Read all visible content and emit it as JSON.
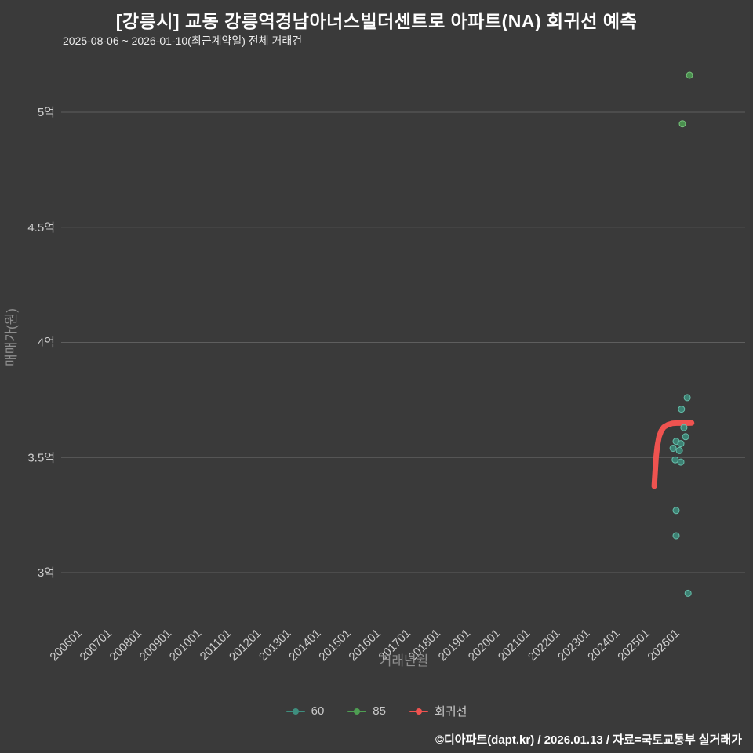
{
  "header": {
    "title": "[강릉시] 교동 강릉역경남아너스빌더센트로 아파트(NA) 회귀선 예측",
    "subtitle": "2025-08-06 ~ 2026-01-10(최근계약일) 전체 거래건"
  },
  "chart_data": {
    "type": "scatter",
    "title": "[강릉시] 교동 강릉역경남아너스빌더센트로 아파트(NA) 회귀선 예측",
    "subtitle": "2025-08-06 ~ 2026-01-10(최근계약일) 전체 거래건",
    "xlabel": "거래년월",
    "ylabel": "매매가(원)",
    "x_unit": "decimal year (2006.0 = 200601)",
    "y_unit": "억원",
    "ylim": [
      2.8,
      5.3
    ],
    "grid": true,
    "legend_position": "bottom-center",
    "x_ticks": [
      "200601",
      "200701",
      "200801",
      "200901",
      "201001",
      "201101",
      "201201",
      "201301",
      "201401",
      "201501",
      "201601",
      "201701",
      "201801",
      "201901",
      "202001",
      "202101",
      "202201",
      "202301",
      "202401",
      "202501",
      "202601"
    ],
    "y_ticks": [
      {
        "label": "5억",
        "value": 5.0
      },
      {
        "label": "4.5억",
        "value": 4.5
      },
      {
        "label": "4억",
        "value": 4.0
      },
      {
        "label": "3.5억",
        "value": 3.5
      },
      {
        "label": "3억",
        "value": 3.0
      }
    ],
    "series": [
      {
        "name": "60",
        "type": "scatter",
        "color": "#3e8e7e",
        "stroke": "#66bfab",
        "points": [
          {
            "x": 2026.5,
            "y": 3.76
          },
          {
            "x": 2026.31,
            "y": 3.71
          },
          {
            "x": 2026.39,
            "y": 3.63
          },
          {
            "x": 2026.45,
            "y": 3.59
          },
          {
            "x": 2026.13,
            "y": 3.57
          },
          {
            "x": 2026.29,
            "y": 3.56
          },
          {
            "x": 2026.03,
            "y": 3.54
          },
          {
            "x": 2026.24,
            "y": 3.53
          },
          {
            "x": 2026.1,
            "y": 3.49
          },
          {
            "x": 2026.29,
            "y": 3.48
          },
          {
            "x": 2026.13,
            "y": 3.27
          },
          {
            "x": 2026.13,
            "y": 3.16
          },
          {
            "x": 2026.53,
            "y": 2.91
          }
        ]
      },
      {
        "name": "85",
        "type": "scatter",
        "color": "#4e9e52",
        "stroke": "#79c47d",
        "points": [
          {
            "x": 2026.58,
            "y": 5.16
          },
          {
            "x": 2026.34,
            "y": 4.95
          }
        ]
      },
      {
        "name": "회귀선",
        "type": "line",
        "color": "#ef5350",
        "width": 7,
        "points": [
          {
            "x": 2025.4,
            "y": 3.375
          },
          {
            "x": 2025.43,
            "y": 3.44
          },
          {
            "x": 2025.46,
            "y": 3.5
          },
          {
            "x": 2025.5,
            "y": 3.55
          },
          {
            "x": 2025.56,
            "y": 3.59
          },
          {
            "x": 2025.63,
            "y": 3.615
          },
          {
            "x": 2025.72,
            "y": 3.632
          },
          {
            "x": 2025.85,
            "y": 3.642
          },
          {
            "x": 2026.0,
            "y": 3.648
          },
          {
            "x": 2026.2,
            "y": 3.65
          },
          {
            "x": 2026.4,
            "y": 3.649
          },
          {
            "x": 2026.65,
            "y": 3.65
          }
        ]
      }
    ]
  },
  "legend": {
    "items": [
      {
        "label": "60",
        "color": "#3e8e7e"
      },
      {
        "label": "85",
        "color": "#4e9e52"
      },
      {
        "label": "회귀선",
        "color": "#ef5350"
      }
    ]
  },
  "footer": {
    "text": "©디아파트(dapt.kr) / 2026.01.13 / 자료=국토교통부 실거래가"
  },
  "style": {
    "background": "#3a3a3a",
    "grid_color": "#7c7c7c",
    "tick_label_color": "#cfcfcf",
    "axis_title_color": "#8f8f8f",
    "title_color": "#ffffff"
  }
}
